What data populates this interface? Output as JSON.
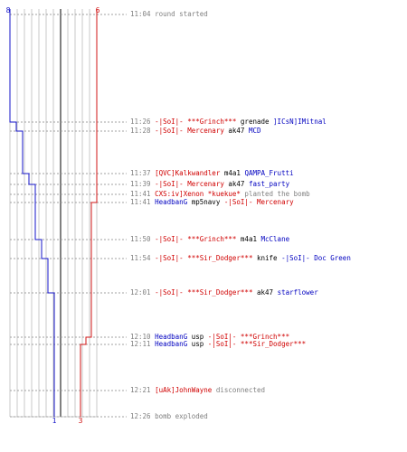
{
  "colors": {
    "ct": "#1414c8",
    "t": "#d01414",
    "grid": "#c8c8c8",
    "center": "#808080",
    "time": "#808080"
  },
  "counts": {
    "ct_start": "8",
    "t_start": "6",
    "ct_end": "1",
    "t_end": "3"
  },
  "events": [
    {
      "time": "11:04",
      "parts": [
        {
          "t": "round started",
          "c": "txt"
        }
      ]
    },
    {
      "time": "11:26",
      "parts": [
        {
          "t": "-|SoI|- ***Grinch***",
          "c": "red"
        },
        {
          "t": " grenade ",
          "c": "blk"
        },
        {
          "t": "]ICsN]IMitnal",
          "c": "blue"
        }
      ]
    },
    {
      "time": "11:28",
      "parts": [
        {
          "t": "-|SoI|- Mercenary",
          "c": "red"
        },
        {
          "t": " ak47 ",
          "c": "blk"
        },
        {
          "t": "MCD",
          "c": "blue"
        }
      ]
    },
    {
      "time": "11:37",
      "parts": [
        {
          "t": "[QVC]Kalkwandler",
          "c": "red"
        },
        {
          "t": " m4a1 ",
          "c": "blk"
        },
        {
          "t": "QAMPA_Frutti",
          "c": "blue"
        }
      ]
    },
    {
      "time": "11:39",
      "parts": [
        {
          "t": "-|SoI|- Mercenary",
          "c": "red"
        },
        {
          "t": " ak47 ",
          "c": "blk"
        },
        {
          "t": "fast_party",
          "c": "blue"
        }
      ]
    },
    {
      "time": "11:41",
      "parts": [
        {
          "t": "CXS:iv]Xenon *kuekue*",
          "c": "red"
        },
        {
          "t": " planted the bomb",
          "c": "txt"
        }
      ]
    },
    {
      "time": "11:41",
      "parts": [
        {
          "t": "HeadbanG",
          "c": "blue"
        },
        {
          "t": " mp5navy ",
          "c": "blk"
        },
        {
          "t": "-|SoI|- Mercenary",
          "c": "red"
        }
      ]
    },
    {
      "time": "11:50",
      "parts": [
        {
          "t": "-|SoI|- ***Grinch***",
          "c": "red"
        },
        {
          "t": " m4a1 ",
          "c": "blk"
        },
        {
          "t": "McClane",
          "c": "blue"
        }
      ]
    },
    {
      "time": "11:54",
      "parts": [
        {
          "t": "-|SoI|- ***Sir_Dodger***",
          "c": "red"
        },
        {
          "t": " knife ",
          "c": "blk"
        },
        {
          "t": "-|SoI|- Doc Green",
          "c": "blue"
        }
      ]
    },
    {
      "time": "12:01",
      "parts": [
        {
          "t": "-|SoI|- ***Sir_Dodger***",
          "c": "red"
        },
        {
          "t": " ak47 ",
          "c": "blk"
        },
        {
          "t": "starflower",
          "c": "blue"
        }
      ]
    },
    {
      "time": "12:10",
      "parts": [
        {
          "t": "HeadbanG",
          "c": "blue"
        },
        {
          "t": " usp ",
          "c": "blk"
        },
        {
          "t": "-|SoI|- ***Grinch***",
          "c": "red"
        }
      ]
    },
    {
      "time": "12:11",
      "parts": [
        {
          "t": "HeadbanG",
          "c": "blue"
        },
        {
          "t": " usp ",
          "c": "blk"
        },
        {
          "t": "-|SoI|- ***Sir_Dodger***",
          "c": "red"
        }
      ]
    },
    {
      "time": "12:21",
      "parts": [
        {
          "t": "[uAk]JohnWayne",
          "c": "red"
        },
        {
          "t": " disconnected",
          "c": "txt"
        }
      ]
    },
    {
      "time": "12:26",
      "parts": [
        {
          "t": "bomb exploded",
          "c": "txt"
        }
      ]
    }
  ],
  "ct_alive": [
    8,
    7,
    6,
    5,
    4,
    4,
    4,
    3,
    2,
    1,
    1,
    1,
    1,
    1
  ],
  "t_alive": [
    6,
    6,
    6,
    6,
    6,
    6,
    5,
    5,
    5,
    5,
    4,
    3,
    3,
    3
  ]
}
